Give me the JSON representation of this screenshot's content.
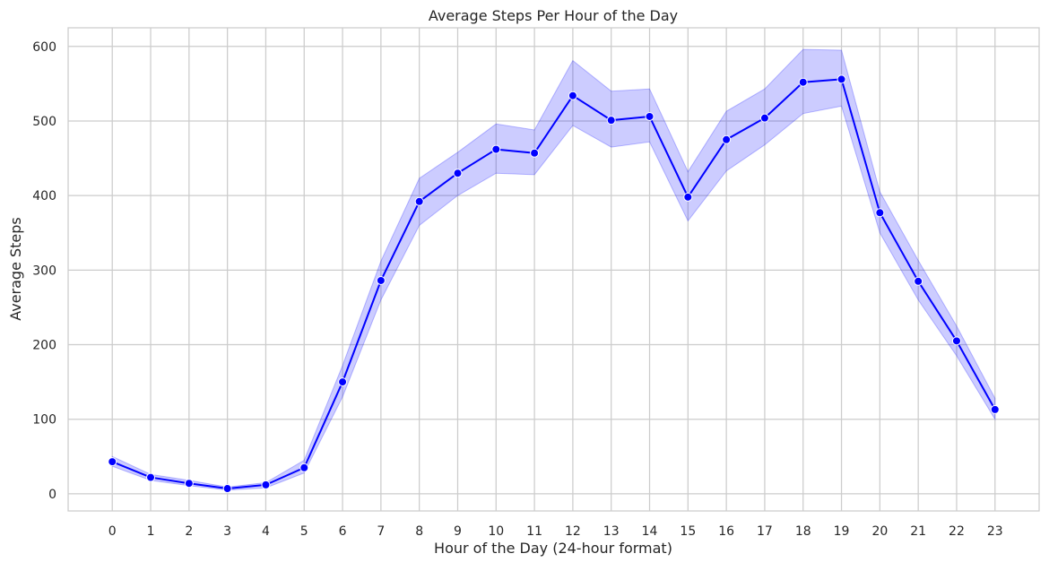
{
  "chart_data": {
    "type": "line",
    "title": "Average Steps Per Hour of the Day",
    "xlabel": "Hour of the Day (24-hour format)",
    "ylabel": "Average Steps",
    "xlim": [
      -1.15,
      24.15
    ],
    "ylim": [
      -23,
      625
    ],
    "x_ticks": [
      0,
      1,
      2,
      3,
      4,
      5,
      6,
      7,
      8,
      9,
      10,
      11,
      12,
      13,
      14,
      15,
      16,
      17,
      18,
      19,
      20,
      21,
      22,
      23
    ],
    "y_ticks": [
      0,
      100,
      200,
      300,
      400,
      500,
      600
    ],
    "grid": true,
    "legend": "none",
    "colors": {
      "line": "#0000ff",
      "marker": "#0000ff",
      "marker_edge": "#ffffff",
      "band": "#0000ff",
      "grid": "#cccccc",
      "axes_frame": "#cccccc",
      "text": "#262626"
    },
    "series": [
      {
        "x": [
          0,
          1,
          2,
          3,
          4,
          5,
          6,
          7,
          8,
          9,
          10,
          11,
          12,
          13,
          14,
          15,
          16,
          17,
          18,
          19,
          20,
          21,
          22,
          23
        ],
        "values": [
          43,
          22,
          14,
          7,
          12,
          35,
          150,
          286,
          392,
          430,
          462,
          457,
          534,
          501,
          506,
          398,
          475,
          504,
          552,
          556,
          377,
          285,
          205,
          113
        ],
        "ci_lower": [
          37,
          18,
          11,
          5,
          8,
          28,
          130,
          260,
          360,
          400,
          430,
          428,
          494,
          465,
          472,
          366,
          433,
          468,
          510,
          520,
          350,
          260,
          185,
          100
        ],
        "ci_upper": [
          50,
          26,
          18,
          9,
          15,
          45,
          172,
          312,
          423,
          458,
          496,
          488,
          581,
          540,
          543,
          432,
          513,
          543,
          596,
          595,
          405,
          313,
          225,
          128
        ]
      }
    ]
  }
}
